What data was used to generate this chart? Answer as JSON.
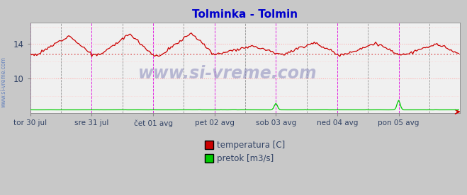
{
  "title": "Tolminka - Tolmin",
  "title_color": "#0000cc",
  "bg_color": "#c8c8c8",
  "plot_bg_color": "#f0f0f0",
  "x_tick_labels": [
    "tor 30 jul",
    "sre 31 jul",
    "čet 01 avg",
    "pet 02 avg",
    "sob 03 avg",
    "ned 04 avg",
    "pon 05 avg"
  ],
  "x_tick_positions": [
    0,
    48,
    96,
    144,
    192,
    240,
    288
  ],
  "y_ticks": [
    10,
    14
  ],
  "ylim": [
    6.0,
    16.5
  ],
  "xlim": [
    0,
    336
  ],
  "avg_line_y": 12.8,
  "avg_line_color": "#dd6666",
  "temp_color": "#cc0000",
  "flow_color": "#00cc00",
  "watermark_text": "www.si-vreme.com",
  "watermark_color": "#8888bb",
  "side_text": "www.si-vreme.com",
  "side_color": "#5577bb",
  "vline_color_major": "#dd00dd",
  "vline_color_minor": "#555555",
  "legend_temp_color": "#cc0000",
  "legend_flow_color": "#00cc00",
  "legend_temp_label": "temperatura [C]",
  "legend_flow_label": "pretok [m3/s]",
  "n_points": 336
}
